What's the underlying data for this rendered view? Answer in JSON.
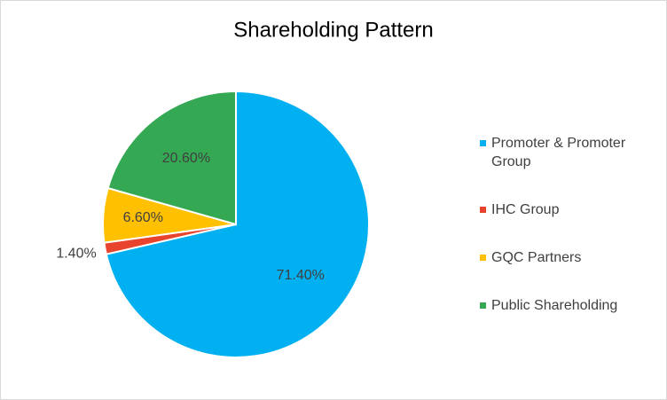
{
  "chart_data": {
    "type": "pie",
    "title": "Shareholding Pattern",
    "categories": [
      "Promoter & Promoter Group",
      "IHC Group",
      "GQC Partners",
      "Public Shareholding"
    ],
    "values": [
      71.4,
      1.4,
      6.6,
      20.6
    ],
    "value_labels": [
      "71.40%",
      "1.40%",
      "6.60%",
      "20.60%"
    ],
    "colors": [
      "#00b0f0",
      "#e8432d",
      "#ffc000",
      "#34a853"
    ],
    "legend": "right"
  }
}
